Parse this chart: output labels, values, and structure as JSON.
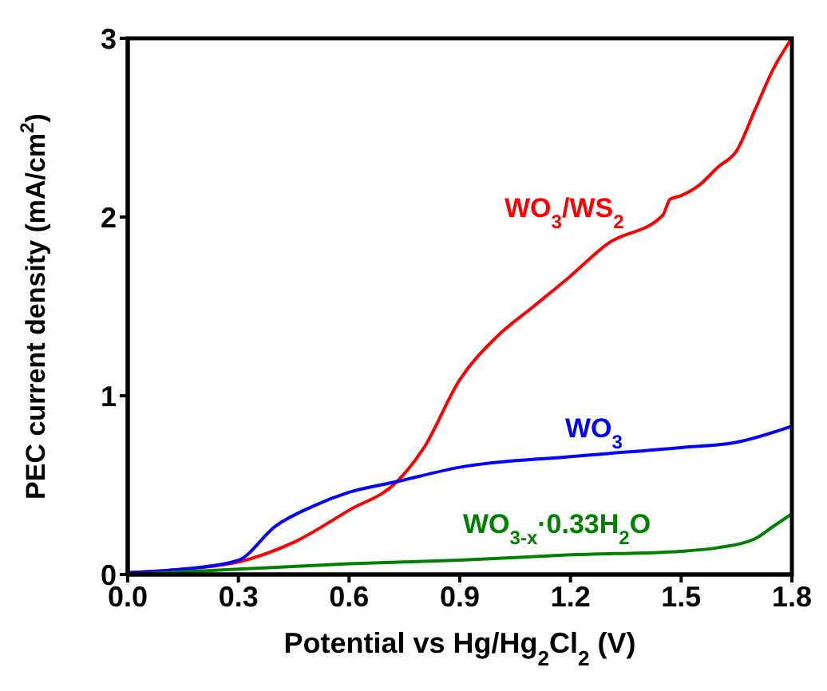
{
  "chart_data": {
    "type": "line",
    "xlabel": "Potential vs Hg/Hg$_{2}$Cl$_{2}$ (V)",
    "ylabel": "PEC current density (mA/cm$^{2}$)",
    "xlim": [
      0,
      1.8
    ],
    "xticks": [
      {
        "value": 0,
        "label": "0.0"
      },
      0.3,
      0.6,
      0.9,
      1.2,
      1.5,
      1.8
    ],
    "ylim": [
      0,
      3
    ],
    "yticks": [
      0,
      1,
      2,
      3
    ],
    "grid": false,
    "legend": false,
    "marker": "none",
    "line_style": "solid",
    "series": [
      {
        "name": "WO$_{3}$/WS$_{2}$",
        "color": "#ff0000",
        "x": [
          0,
          0.15,
          0.3,
          0.45,
          0.6,
          0.73,
          0.8,
          0.9,
          1.0,
          1.1,
          1.2,
          1.3,
          1.45,
          1.47,
          1.5,
          1.55,
          1.6,
          1.65,
          1.7,
          1.75,
          1.8
        ],
        "values": [
          0.01,
          0.03,
          0.07,
          0.18,
          0.36,
          0.52,
          0.7,
          1.09,
          1.33,
          1.5,
          1.67,
          1.85,
          2.01,
          2.1,
          2.12,
          2.18,
          2.28,
          2.37,
          2.6,
          2.83,
          3.0
        ]
      },
      {
        "name": "WO$_{3}$",
        "color": "#0000ff",
        "x": [
          0,
          0.15,
          0.3,
          0.4,
          0.5,
          0.6,
          0.73,
          0.9,
          1.2,
          1.5,
          1.65,
          1.8
        ],
        "values": [
          0.01,
          0.03,
          0.08,
          0.27,
          0.38,
          0.46,
          0.52,
          0.6,
          0.66,
          0.71,
          0.74,
          0.83
        ]
      },
      {
        "name": "WO$_{3-x}$·0.33H$_{2}$O",
        "color": "#008000",
        "x": [
          0,
          0.3,
          0.6,
          0.9,
          1.2,
          1.5,
          1.6,
          1.7,
          1.75,
          1.8
        ],
        "values": [
          0,
          0.03,
          0.06,
          0.08,
          0.11,
          0.13,
          0.15,
          0.2,
          0.27,
          0.34
        ]
      }
    ]
  }
}
